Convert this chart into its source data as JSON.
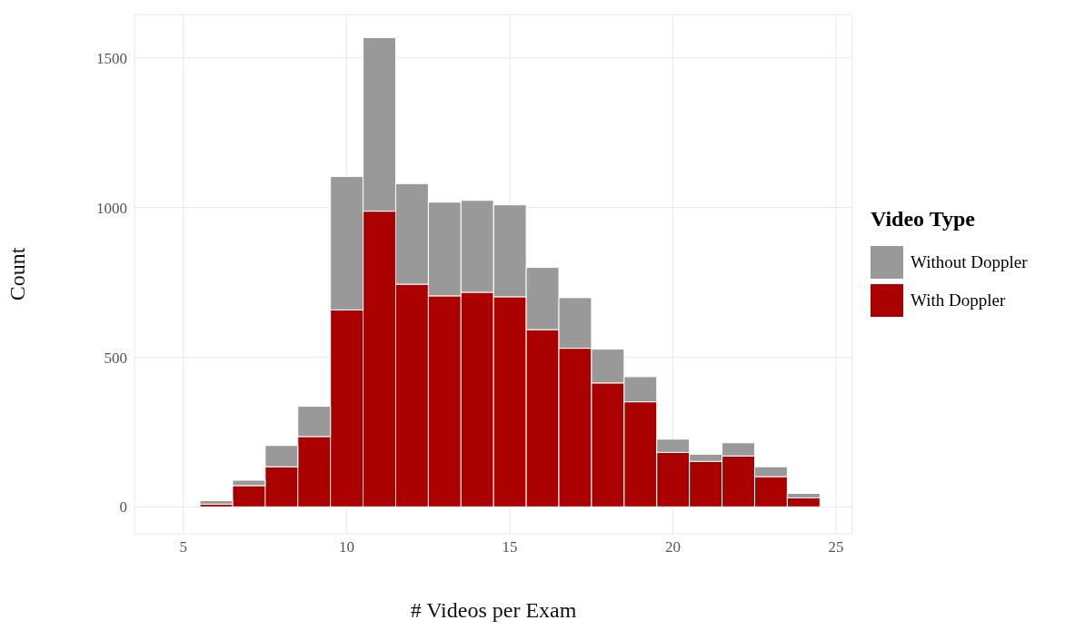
{
  "chart_data": {
    "type": "bar",
    "stacked": true,
    "xlabel": "# Videos per Exam",
    "ylabel": "Count",
    "legend_title": "Video Type",
    "legend": "right",
    "grid": true,
    "x": [
      6,
      7,
      8,
      9,
      10,
      11,
      12,
      13,
      14,
      15,
      16,
      17,
      18,
      19,
      20,
      21,
      22,
      23,
      24
    ],
    "series": [
      {
        "name": "With Doppler",
        "color": "#aa0000",
        "values": [
          9,
          71,
          134,
          235,
          658,
          988,
          744,
          705,
          717,
          702,
          592,
          530,
          414,
          351,
          182,
          152,
          170,
          101,
          30
        ]
      },
      {
        "name": "Without Doppler",
        "color": "#999999",
        "values": [
          12,
          18,
          71,
          101,
          446,
          580,
          336,
          313,
          307,
          307,
          208,
          169,
          113,
          84,
          44,
          24,
          44,
          33,
          15
        ]
      }
    ],
    "xlim": [
      3.5,
      25.5
    ],
    "xticks": [
      5,
      10,
      15,
      20,
      25
    ],
    "ylim": [
      -90,
      1645
    ],
    "yticks": [
      0,
      500,
      1000,
      1500
    ]
  }
}
